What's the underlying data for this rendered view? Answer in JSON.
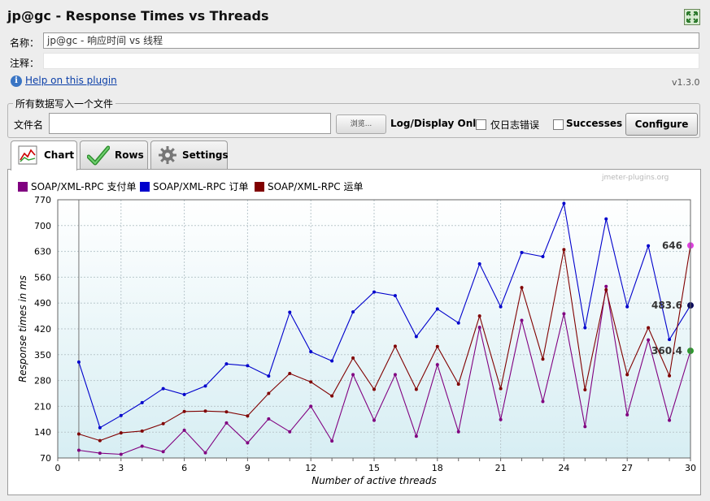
{
  "window": {
    "title": "jp@gc - Response Times vs Threads"
  },
  "icons": {
    "expand": "expand-icon",
    "help": "info-icon"
  },
  "form": {
    "name_label": "名称：",
    "name_value": "jp@gc - 响应时间 vs 线程",
    "comment_label": "注释：",
    "comment_value": "",
    "help_link": "Help on this plugin",
    "version": "v1.3.0"
  },
  "file_panel": {
    "legend": "所有数据写入一个文件",
    "filename_label": "文件名",
    "filename_value": "",
    "browse_label": "浏览...",
    "log_display_label": "Log/Display Only:",
    "errors_only_label": "仅日志错误",
    "errors_only_checked": false,
    "successes_label": "Successes",
    "successes_checked": false,
    "configure_label": "Configure"
  },
  "tabs": [
    {
      "label": "Chart",
      "icon": "chart-icon",
      "active": true
    },
    {
      "label": "Rows",
      "icon": "checkmark-icon",
      "active": false
    },
    {
      "label": "Settings",
      "icon": "gear-icon",
      "active": false
    }
  ],
  "chart_data": {
    "type": "line",
    "watermark": "jmeter-plugins.org",
    "xlabel": "Number of active threads",
    "ylabel": "Response times in ms",
    "xlim": [
      0,
      30
    ],
    "ylim": [
      70,
      770
    ],
    "x_ticks": [
      0,
      3,
      6,
      9,
      12,
      15,
      18,
      21,
      24,
      27,
      30
    ],
    "y_ticks": [
      70,
      140,
      210,
      280,
      350,
      420,
      490,
      560,
      630,
      700,
      770
    ],
    "grid": true,
    "legend_position": "top-left",
    "x": [
      1,
      2,
      3,
      4,
      5,
      6,
      7,
      8,
      9,
      10,
      11,
      12,
      13,
      14,
      15,
      16,
      17,
      18,
      19,
      20,
      21,
      22,
      23,
      24,
      25,
      26,
      27,
      28,
      29,
      30
    ],
    "series": [
      {
        "name": "SOAP/XML-RPC 支付单",
        "color": "#800080",
        "last_color": "#2e9a2e",
        "last_label": "360.4",
        "values": [
          91,
          83,
          80,
          102,
          87,
          145,
          84,
          165,
          111,
          176,
          141,
          210,
          116,
          296,
          172,
          296,
          129,
          323,
          141,
          424,
          174,
          443,
          223,
          461,
          155,
          535,
          187,
          390,
          172,
          360.4
        ]
      },
      {
        "name": "SOAP/XML-RPC 订单",
        "color": "#0000cc",
        "last_color": "#0a0a5a",
        "last_label": "483.6",
        "values": [
          330,
          152,
          185,
          220,
          258,
          242,
          265,
          325,
          320,
          292,
          465,
          358,
          333,
          466,
          520,
          510,
          399,
          474,
          436,
          596,
          480,
          627,
          616,
          760,
          423,
          718,
          480,
          645,
          391,
          483.6
        ]
      },
      {
        "name": "SOAP/XML-RPC 运单",
        "color": "#800000",
        "last_color": "#e040e0",
        "last_label": "646",
        "values": [
          135,
          117,
          138,
          143,
          163,
          196,
          197,
          195,
          184,
          245,
          299,
          276,
          238,
          341,
          256,
          373,
          256,
          372,
          270,
          455,
          258,
          532,
          338,
          635,
          255,
          526,
          296,
          423,
          293,
          646
        ]
      }
    ]
  }
}
